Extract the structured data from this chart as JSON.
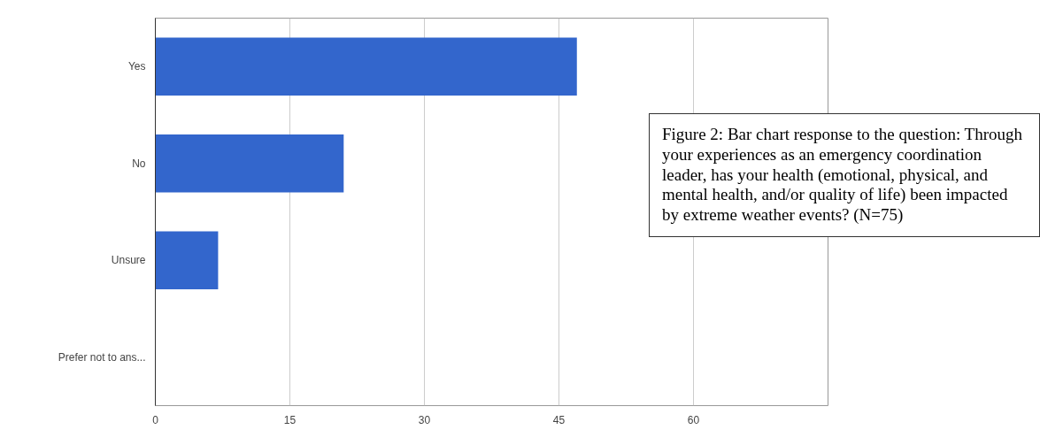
{
  "chart_data": {
    "type": "bar",
    "orientation": "horizontal",
    "categories": [
      "Yes",
      "No",
      "Unsure",
      "Prefer not to ans..."
    ],
    "values": [
      47,
      21,
      7,
      0
    ],
    "color": "#3366cc",
    "xlim": [
      0,
      75
    ],
    "xticks": [
      0,
      15,
      30,
      45,
      60
    ],
    "grid": "x",
    "annotations": [
      "Figure 2: Bar chart response to the question: Through your experiences as an emergency coordination leader, has your health (emotional, physical, and mental health, and/or quality of life) been impacted by extreme weather events? (N=75)"
    ]
  }
}
